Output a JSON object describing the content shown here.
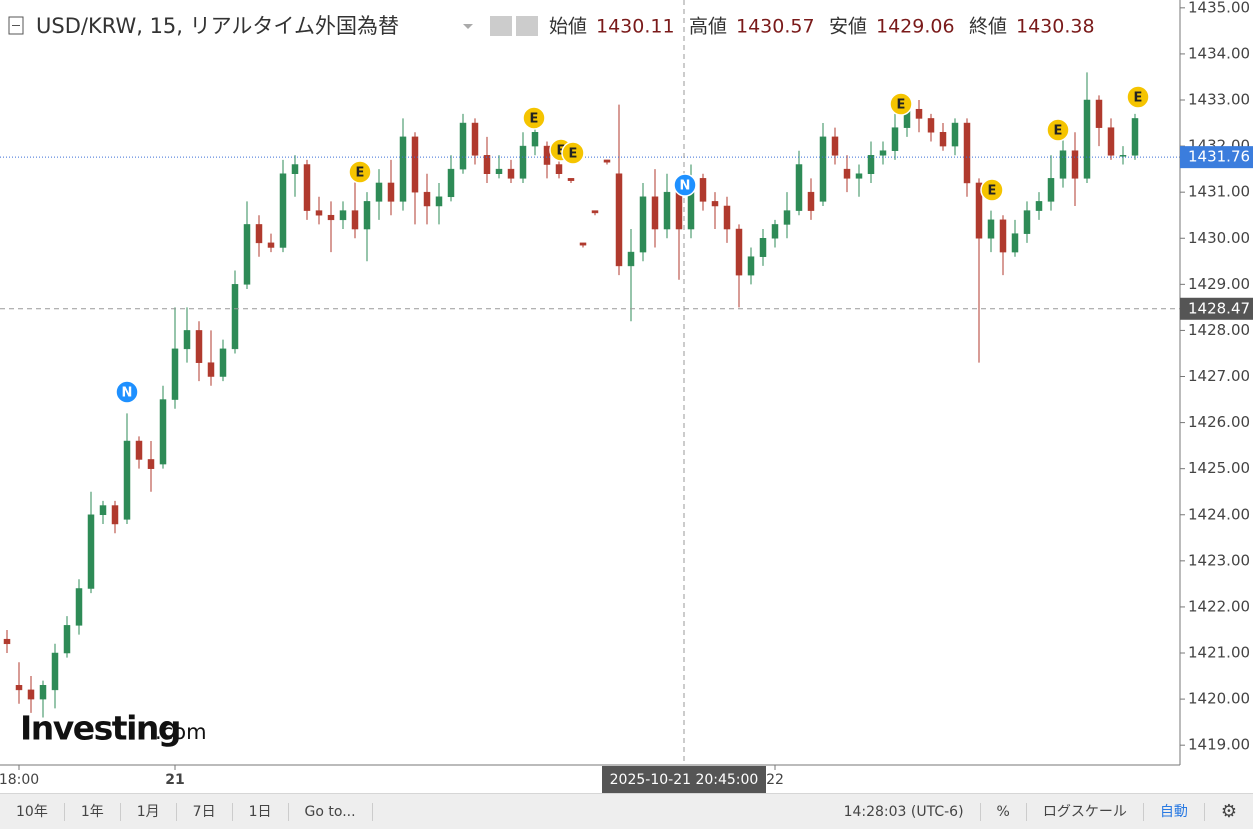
{
  "header": {
    "title": "USD/KRW, 15, リアルタイム外国為替",
    "ohlc": [
      {
        "label": "始値",
        "value": 1430.11
      },
      {
        "label": "高値",
        "value": 1430.57
      },
      {
        "label": "安値",
        "value": 1429.06
      },
      {
        "label": "終値",
        "value": 1430.38
      }
    ]
  },
  "chart_data": {
    "type": "candlestick",
    "up_color": "#2e8b57",
    "down_color": "#b03a2e",
    "ylim": [
      1418.57,
      1435.17
    ],
    "yticks": [
      {
        "value": 1419,
        "label": "1419.00"
      },
      {
        "value": 1420,
        "label": "1420.00"
      },
      {
        "value": 1421,
        "label": "1421.00"
      },
      {
        "value": 1422,
        "label": "1422.00"
      },
      {
        "value": 1423,
        "label": "1423.00"
      },
      {
        "value": 1424,
        "label": "1424.00"
      },
      {
        "value": 1425,
        "label": "1425.00"
      },
      {
        "value": 1426,
        "label": "1426.00"
      },
      {
        "value": 1427,
        "label": "1427.00"
      },
      {
        "value": 1428,
        "label": "1428.00"
      },
      {
        "value": 1429,
        "label": "1429.00"
      },
      {
        "value": 1430,
        "label": "1430.00"
      },
      {
        "value": 1431,
        "label": "1431.00"
      },
      {
        "value": 1432,
        "label": "1432.00"
      },
      {
        "value": 1433,
        "label": "1433.00"
      },
      {
        "value": 1434,
        "label": "1434.00"
      },
      {
        "value": 1435,
        "label": "1435.00"
      }
    ],
    "xticks": [
      {
        "value": 1,
        "label": "18:00"
      },
      {
        "value": 14,
        "label": "21"
      },
      {
        "value": 64,
        "label": "22"
      }
    ],
    "ohlc": [
      [
        1421.3,
        1421.5,
        1421.0,
        1421.2
      ],
      [
        1420.3,
        1420.8,
        1419.9,
        1420.2
      ],
      [
        1420.2,
        1420.5,
        1419.7,
        1420.0
      ],
      [
        1420.0,
        1420.4,
        1419.6,
        1420.3
      ],
      [
        1420.2,
        1421.2,
        1419.8,
        1421.0
      ],
      [
        1421.0,
        1421.8,
        1420.9,
        1421.6
      ],
      [
        1421.6,
        1422.6,
        1421.4,
        1422.4
      ],
      [
        1422.4,
        1424.5,
        1422.3,
        1424.0
      ],
      [
        1424.0,
        1424.3,
        1423.8,
        1424.2
      ],
      [
        1424.2,
        1424.3,
        1423.6,
        1423.8
      ],
      [
        1423.9,
        1426.2,
        1423.8,
        1425.6
      ],
      [
        1425.6,
        1425.7,
        1425.0,
        1425.2
      ],
      [
        1425.2,
        1425.6,
        1424.5,
        1425.0
      ],
      [
        1425.1,
        1426.8,
        1425.0,
        1426.5
      ],
      [
        1426.5,
        1428.5,
        1426.3,
        1427.6
      ],
      [
        1427.6,
        1428.5,
        1427.3,
        1428.0
      ],
      [
        1428.0,
        1428.2,
        1426.9,
        1427.3
      ],
      [
        1427.3,
        1428.0,
        1426.8,
        1427.0
      ],
      [
        1427.0,
        1427.8,
        1426.9,
        1427.6
      ],
      [
        1427.6,
        1429.3,
        1427.5,
        1429.0
      ],
      [
        1429.0,
        1430.8,
        1428.9,
        1430.3
      ],
      [
        1430.3,
        1430.5,
        1429.6,
        1429.9
      ],
      [
        1429.9,
        1430.1,
        1429.7,
        1429.8
      ],
      [
        1429.8,
        1431.7,
        1429.7,
        1431.4
      ],
      [
        1431.4,
        1431.8,
        1430.9,
        1431.6
      ],
      [
        1431.6,
        1431.7,
        1430.4,
        1430.6
      ],
      [
        1430.6,
        1430.9,
        1430.3,
        1430.5
      ],
      [
        1430.5,
        1430.8,
        1429.7,
        1430.4
      ],
      [
        1430.4,
        1430.8,
        1430.2,
        1430.6
      ],
      [
        1430.6,
        1431.4,
        1430.0,
        1430.2
      ],
      [
        1430.2,
        1431.0,
        1429.5,
        1430.8
      ],
      [
        1430.8,
        1431.5,
        1430.4,
        1431.2
      ],
      [
        1431.2,
        1431.7,
        1430.5,
        1430.8
      ],
      [
        1430.8,
        1432.6,
        1430.6,
        1432.2
      ],
      [
        1432.2,
        1432.3,
        1430.3,
        1431.0
      ],
      [
        1431.0,
        1431.4,
        1430.3,
        1430.7
      ],
      [
        1430.7,
        1431.2,
        1430.3,
        1430.9
      ],
      [
        1430.9,
        1431.8,
        1430.8,
        1431.5
      ],
      [
        1431.5,
        1432.7,
        1431.4,
        1432.5
      ],
      [
        1432.5,
        1432.6,
        1431.6,
        1431.8
      ],
      [
        1431.8,
        1432.2,
        1431.2,
        1431.4
      ],
      [
        1431.4,
        1431.8,
        1431.3,
        1431.5
      ],
      [
        1431.5,
        1431.7,
        1431.2,
        1431.3
      ],
      [
        1431.3,
        1432.3,
        1431.2,
        1432.0
      ],
      [
        1432.0,
        1432.6,
        1431.8,
        1432.3
      ],
      [
        1432.0,
        1432.1,
        1431.3,
        1431.6
      ],
      [
        1431.6,
        1431.8,
        1431.3,
        1431.4
      ],
      [
        1431.3,
        1431.3,
        1431.2,
        1431.25
      ],
      [
        1429.9,
        1429.9,
        1429.8,
        1429.85
      ],
      [
        1430.6,
        1430.6,
        1430.5,
        1430.55
      ],
      [
        1431.7,
        1431.7,
        1431.6,
        1431.65
      ],
      [
        1431.4,
        1432.9,
        1429.2,
        1429.4
      ],
      [
        1429.4,
        1430.2,
        1428.2,
        1429.7
      ],
      [
        1429.7,
        1431.2,
        1429.5,
        1430.9
      ],
      [
        1430.9,
        1431.5,
        1429.8,
        1430.2
      ],
      [
        1430.2,
        1431.4,
        1430.0,
        1431.0
      ],
      [
        1431.0,
        1431.3,
        1429.1,
        1430.2
      ],
      [
        1430.2,
        1431.6,
        1430.0,
        1431.3
      ],
      [
        1431.3,
        1431.4,
        1430.6,
        1430.8
      ],
      [
        1430.8,
        1431.0,
        1430.2,
        1430.7
      ],
      [
        1430.7,
        1430.9,
        1429.9,
        1430.2
      ],
      [
        1430.2,
        1430.3,
        1428.5,
        1429.2
      ],
      [
        1429.2,
        1429.8,
        1429.0,
        1429.6
      ],
      [
        1429.6,
        1430.2,
        1429.4,
        1430.0
      ],
      [
        1430.0,
        1430.4,
        1429.8,
        1430.3
      ],
      [
        1430.3,
        1431.0,
        1430.0,
        1430.6
      ],
      [
        1430.6,
        1431.9,
        1430.5,
        1431.6
      ],
      [
        1431.0,
        1431.3,
        1430.4,
        1430.6
      ],
      [
        1430.8,
        1432.5,
        1430.7,
        1432.2
      ],
      [
        1432.2,
        1432.4,
        1431.6,
        1431.8
      ],
      [
        1431.5,
        1431.8,
        1431.0,
        1431.3
      ],
      [
        1431.3,
        1431.6,
        1430.9,
        1431.4
      ],
      [
        1431.4,
        1432.1,
        1431.2,
        1431.8
      ],
      [
        1431.8,
        1432.1,
        1431.6,
        1431.9
      ],
      [
        1431.9,
        1432.8,
        1431.7,
        1432.4
      ],
      [
        1432.4,
        1433.1,
        1432.2,
        1432.8
      ],
      [
        1432.8,
        1433.0,
        1432.3,
        1432.6
      ],
      [
        1432.6,
        1432.7,
        1432.1,
        1432.3
      ],
      [
        1432.3,
        1432.5,
        1431.9,
        1432.0
      ],
      [
        1432.0,
        1432.6,
        1431.8,
        1432.5
      ],
      [
        1432.5,
        1432.6,
        1430.9,
        1431.2
      ],
      [
        1431.2,
        1431.3,
        1427.3,
        1430.0
      ],
      [
        1430.0,
        1430.6,
        1429.7,
        1430.4
      ],
      [
        1430.4,
        1430.5,
        1429.2,
        1429.7
      ],
      [
        1429.7,
        1430.4,
        1429.6,
        1430.1
      ],
      [
        1430.1,
        1430.8,
        1429.9,
        1430.6
      ],
      [
        1430.6,
        1431.0,
        1430.4,
        1430.8
      ],
      [
        1430.8,
        1431.8,
        1430.6,
        1431.3
      ],
      [
        1431.3,
        1432.2,
        1431.1,
        1431.9
      ],
      [
        1431.9,
        1432.3,
        1430.7,
        1431.3
      ],
      [
        1431.3,
        1433.6,
        1431.2,
        1433.0
      ],
      [
        1433.0,
        1433.1,
        1432.0,
        1432.4
      ],
      [
        1432.4,
        1432.6,
        1431.7,
        1431.8
      ],
      [
        1431.8,
        1432.0,
        1431.6,
        1431.8
      ],
      [
        1431.8,
        1432.7,
        1431.7,
        1432.6
      ]
    ],
    "last_price": 1431.76,
    "crosshair": {
      "price": 1428.47,
      "time": "2025-10-21 20:45:00"
    },
    "events": [
      "N",
      "E",
      "E",
      "E",
      "E",
      "N",
      "E",
      "E",
      "E",
      "E"
    ]
  },
  "watermark": {
    "brand": "Investing",
    "suffix": ".com"
  },
  "toolbar": {
    "ranges": [
      "10年",
      "1年",
      "1月",
      "7日",
      "1日",
      "Go to..."
    ],
    "clock": "14:28:03 (UTC-6)",
    "options": [
      "%",
      "ログスケール",
      "自動"
    ]
  }
}
